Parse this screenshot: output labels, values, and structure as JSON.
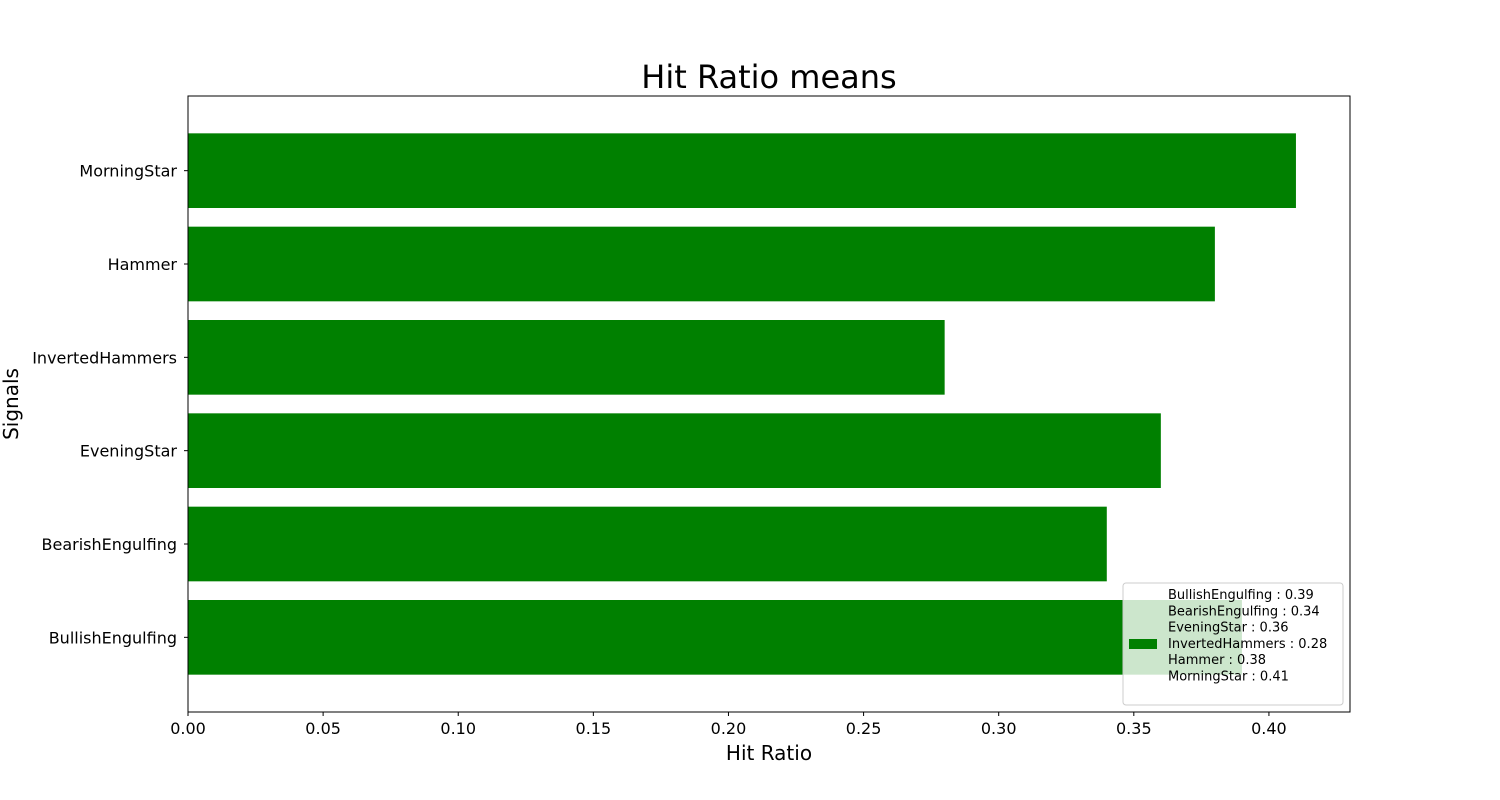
{
  "chart_data": {
    "type": "bar",
    "orientation": "horizontal",
    "title": "Hit Ratio means",
    "xlabel": "Hit Ratio",
    "ylabel": "Signals",
    "categories": [
      "BullishEngulfing",
      "BearishEngulfing",
      "EveningStar",
      "InvertedHammers",
      "Hammer",
      "MorningStar"
    ],
    "values": [
      0.39,
      0.34,
      0.36,
      0.28,
      0.38,
      0.41
    ],
    "xlim": [
      0.0,
      0.43
    ],
    "xticks": [
      "0.00",
      "0.05",
      "0.10",
      "0.15",
      "0.20",
      "0.25",
      "0.30",
      "0.35",
      "0.40"
    ],
    "bar_color": "#008000",
    "grid": false,
    "legend": {
      "placement": "lower-right",
      "entries": [
        "BullishEngulfing : 0.39",
        "BearishEngulfing : 0.34",
        "EveningStar : 0.36",
        "InvertedHammers : 0.28",
        "Hammer : 0.38",
        "MorningStar : 0.41"
      ]
    }
  }
}
